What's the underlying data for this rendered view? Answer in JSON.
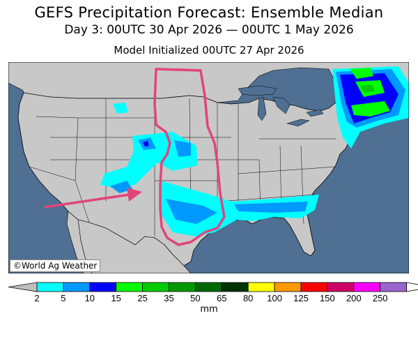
{
  "header": {
    "title": "GEFS Precipitation Forecast: Ensemble Median",
    "period": "Day 3: 00UTC 30 Apr 2026 — 00UTC 1 May 2026",
    "initialized": "Model Initialized 00UTC 27 Apr 2026"
  },
  "map": {
    "credit": "©World Ag Weather",
    "colors": {
      "ocean": "#4f6f93",
      "land": "#c8c8c8",
      "borders": "#000000",
      "annotation": "#e0457b"
    },
    "annotations": [
      {
        "kind": "outline",
        "description": "pink outline of Great Plains corridor"
      },
      {
        "kind": "arrow",
        "description": "pink arrow pointing to southwest precipitation"
      }
    ]
  },
  "colorbar": {
    "unit": "mm",
    "ticks": [
      "2",
      "5",
      "10",
      "15",
      "25",
      "35",
      "50",
      "65",
      "80",
      "100",
      "125",
      "150",
      "200",
      "250"
    ],
    "colors": [
      "#00ffff",
      "#0099ff",
      "#0000ff",
      "#00ff00",
      "#00cc00",
      "#009900",
      "#006600",
      "#003300",
      "#ffff00",
      "#ff9900",
      "#ff0000",
      "#cc0066",
      "#ff00ff",
      "#9966cc"
    ],
    "under_color": "#c0c0c0",
    "over_color": "#ffffff"
  }
}
